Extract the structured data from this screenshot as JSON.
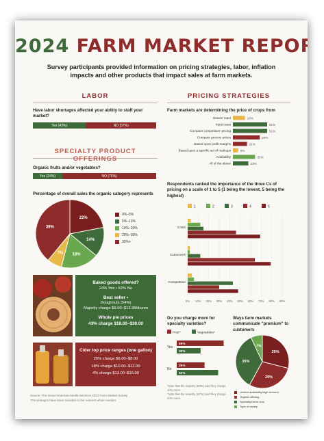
{
  "title_year": "2024",
  "title_text": "FARM MARKET REPORT",
  "subtitle": "Survey participants provided information on pricing strategies, labor, inflation impacts and other products that impact sales at farm markets.",
  "colors": {
    "green": "#3f6b3a",
    "red": "#8e2b2b",
    "light_green": "#6aa84f",
    "yellow": "#e9b84a",
    "dark_red": "#7a1f1f"
  },
  "labor": {
    "heading": "LABOR",
    "question": "Have labor shortages affected your ability to staff your market?",
    "yes_label": "Yes (43%)",
    "no_label": "NO (57%)",
    "yes_pct": 43,
    "no_pct": 57
  },
  "specialty": {
    "heading": "SPECIALTY PRODUCT OFFERINGS",
    "question": "Organic fruits and/or vegetables?",
    "yes_label": "Yes (24%)",
    "no_label": "NO (76%)",
    "yes_pct": 24,
    "no_pct": 76,
    "pie_title": "Percentage of overall sales the organic category represents"
  },
  "baked": {
    "line1": "Baked goods offered?",
    "line2": "24% Yes • 62% No",
    "line3": "Best seller •",
    "line4": "Doughnuts (54%)",
    "line5": "Majority charge $9.00–$13.99/dozen",
    "line6": "Whole pie prices",
    "line7": "43% charge $18.00–$30.00"
  },
  "cider": {
    "line1": "Cider top price ranges (one gallon)",
    "line2": "25% charge $6.00–$8.00",
    "line3": "18% charge $10.00–$12.00",
    "line4": "4% charge $13.00–$15.00"
  },
  "footnotes": {
    "line1": "Source: The Great American Media Services 2024 Farm Market Survey",
    "line2": "*Percentages have been rounded to the nearest whole number."
  },
  "pricing": {
    "heading": "PRICING STRATEGIES",
    "question": "Farm markets are determining the price of crops from"
  },
  "premium": {
    "question": "Do you charge more for specialty varieties?",
    "note1": "*Note that the majority (63%) said they charge 10% more.",
    "note2": "*Note that the majority (67%) said they charge 20% more."
  },
  "communicate": {
    "question": "Ways farm markets communicate \"premium\" to customers"
  },
  "chart_data": [
    {
      "type": "pie",
      "title": "Percentage of overall sales the organic category represents",
      "categories": [
        "0%–5%",
        "5%–10%",
        "10%–20%",
        "20%–30%",
        "30%+"
      ],
      "values": [
        22,
        14,
        18,
        7,
        39
      ],
      "colors": [
        "#7a1f1f",
        "#3f6b3a",
        "#6aa84f",
        "#e9b84a",
        "#8e2b2b"
      ],
      "legend": "right"
    },
    {
      "type": "bar",
      "orientation": "horizontal",
      "title": "Farm markets are determining the price of crops from",
      "categories": [
        "Grower input",
        "Input costs",
        "Compare competitors' pricing",
        "Compare grocery prices",
        "Based upon profit margins",
        "Based upon a specific set of markups",
        "Availability",
        "All of the above"
      ],
      "values": [
        18,
        51,
        51,
        40,
        21,
        8,
        33,
        23
      ],
      "colors": [
        "#e9b84a",
        "#3f6b3a",
        "#3f6b3a",
        "#8e2b2b",
        "#8e2b2b",
        "#e9b84a",
        "#6aa84f",
        "#3f6b3a"
      ],
      "value_suffix": "%"
    },
    {
      "type": "bar",
      "orientation": "horizontal",
      "title": "Respondents ranked the importance of the three Cs of pricing on a scale of 1 to 5 (1 being the lowest, 5 being the highest)",
      "categories": [
        "Costs",
        "Customers",
        "Competition"
      ],
      "series": [
        {
          "name": "1",
          "values": [
            3,
            2,
            4
          ],
          "color": "#e9b84a"
        },
        {
          "name": "2",
          "values": [
            12,
            2,
            6
          ],
          "color": "#6aa84f"
        },
        {
          "name": "3",
          "values": [
            15,
            12,
            43
          ],
          "color": "#3f6b3a"
        },
        {
          "name": "4",
          "values": [
            46,
            64,
            30
          ],
          "color": "#8e2b2b"
        },
        {
          "name": "5",
          "values": [
            69,
            79,
            48
          ],
          "color": "#7a1f1f"
        }
      ],
      "x_ticks": [
        "0%",
        "10%",
        "20%",
        "30%",
        "40%",
        "50%",
        "60%",
        "70%",
        "80%",
        "90%"
      ],
      "xlim": [
        0,
        90
      ],
      "legend": "top"
    },
    {
      "type": "bar",
      "orientation": "horizontal",
      "title": "Do you charge more for specialty varieties?",
      "categories": [
        "Yes",
        "No"
      ],
      "series": [
        {
          "name": "Fruit*",
          "values": [
            59,
            35
          ],
          "color": "#8e2b2b"
        },
        {
          "name": "Vegetables*",
          "values": [
            30,
            52
          ],
          "color": "#3f6b3a"
        }
      ],
      "value_suffix": "%",
      "legend": "top"
    },
    {
      "type": "pie",
      "title": "Ways farm markets communicate \"premium\" to customers",
      "categories": [
        "Limited availability/high demand",
        "Organic offering",
        "Specialty/niche crop",
        "Type of variety"
      ],
      "values": [
        29,
        29,
        35,
        7
      ],
      "colors": [
        "#7a1f1f",
        "#8e2b2b",
        "#3f6b3a",
        "#6aa84f"
      ],
      "legend": "bottom"
    }
  ]
}
